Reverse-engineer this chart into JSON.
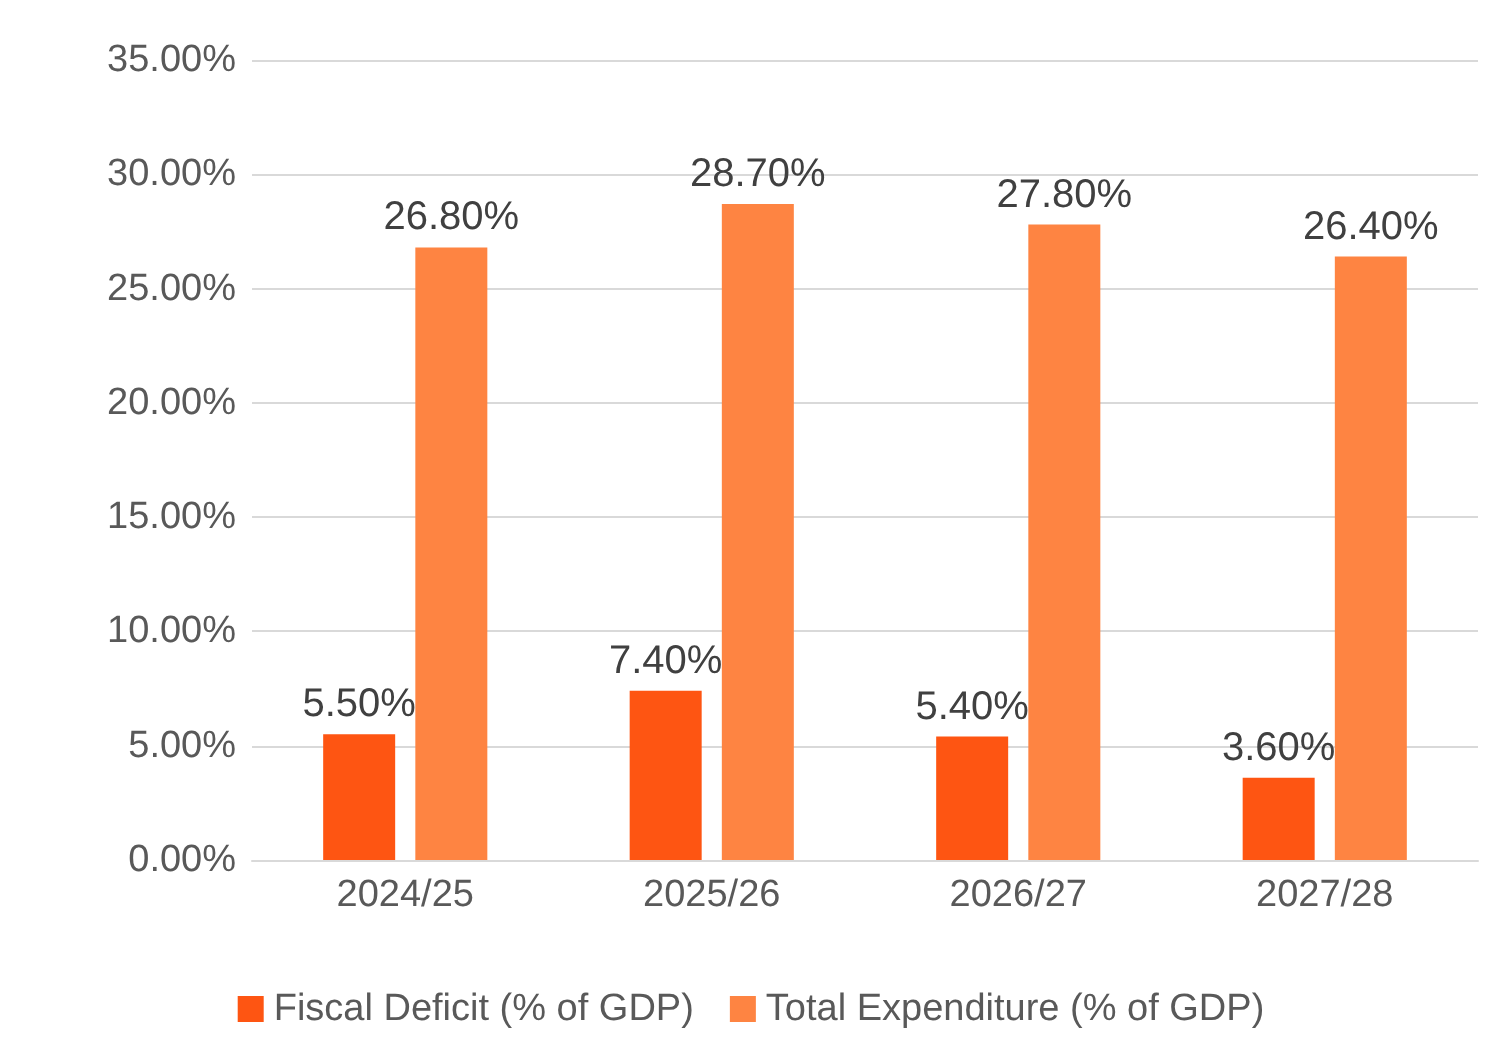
{
  "chart_data": {
    "type": "bar",
    "categories": [
      "2024/25",
      "2025/26",
      "2026/27",
      "2027/28"
    ],
    "series": [
      {
        "name": "Fiscal Deficit (% of GDP)",
        "color": "#fe5512",
        "values": [
          5.5,
          7.4,
          5.4,
          3.6
        ],
        "value_labels": [
          "5.50%",
          "7.40%",
          "5.40%",
          "3.60%"
        ]
      },
      {
        "name": "Total Expenditure (% of GDP)",
        "color": "#fe8442",
        "values": [
          26.8,
          28.7,
          27.8,
          26.4
        ],
        "value_labels": [
          "26.80%",
          "28.70%",
          "27.80%",
          "26.40%"
        ]
      }
    ],
    "ylim": [
      0,
      35
    ],
    "yticks": [
      {
        "value": 0,
        "label": "0.00%"
      },
      {
        "value": 5,
        "label": "5.00%"
      },
      {
        "value": 10,
        "label": "10.00%"
      },
      {
        "value": 15,
        "label": "15.00%"
      },
      {
        "value": 20,
        "label": "20.00%"
      },
      {
        "value": 25,
        "label": "25.00%"
      },
      {
        "value": 30,
        "label": "30.00%"
      },
      {
        "value": 35,
        "label": "35.00%"
      }
    ],
    "grid": "y",
    "legend": "bottom"
  }
}
